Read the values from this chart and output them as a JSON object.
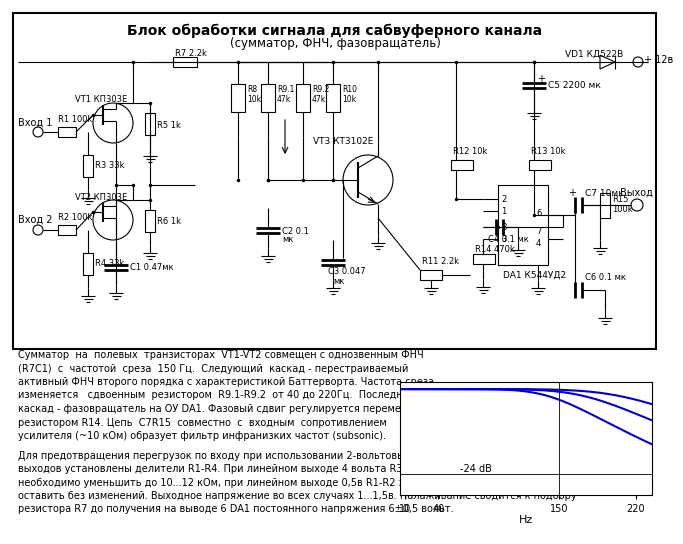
{
  "title_line1": "Блок обработки сигнала для сабвуферного канала",
  "title_line2": "(сумматор, ФНЧ, фазовращатель)",
  "bg_color": "#ffffff",
  "cc": "#000000",
  "blue": "#0000cc",
  "desc1": "Сумматор  на  полевых  транзисторах  VT1-VT2 совмещен с однозвенным ФНЧ",
  "desc2": "(R7C1)  с  частотой  среза  150 Гц.  Следующий  каскад - перестраиваемый",
  "desc3": "активный ФНЧ второго порядка с характеристикой Баттерворта. Частота среза",
  "desc4": "изменяется   сдвоенным  резистором  R9.1-R9.2  от 40 до 220Гц.  Последний",
  "desc5": "каскад - фазовращатель на ОУ DA1. Фазовый сдвиг регулируется переменным",
  "desc6": "резистором R14. Цепь  C7R15  совместно  с  входным  сопротивлением",
  "desc7": "усилителя (~10 кОм) образует фильтр инфранизких частот (subsonic).",
  "desc8": "Для предотвращения перегрузок по входу при использовании 2-вольтовых",
  "desc9": "выходов установлены делители R1-R4. При линейном выходе 4 вольта R3-R4",
  "desc10": "необходимо уменьшить до 10...12 кОм, при линейном выходе 0,5в R1-R2 заменить перемычками, R3-R4",
  "desc11": "оставить без изменений. Выходное напряжение во всех случаях 1...1,5в. Налаживание сводится к подбору",
  "desc12": "резистора R7 до получения на выводе 6 DA1 постоянного напряжения 6±0,5 вольт."
}
